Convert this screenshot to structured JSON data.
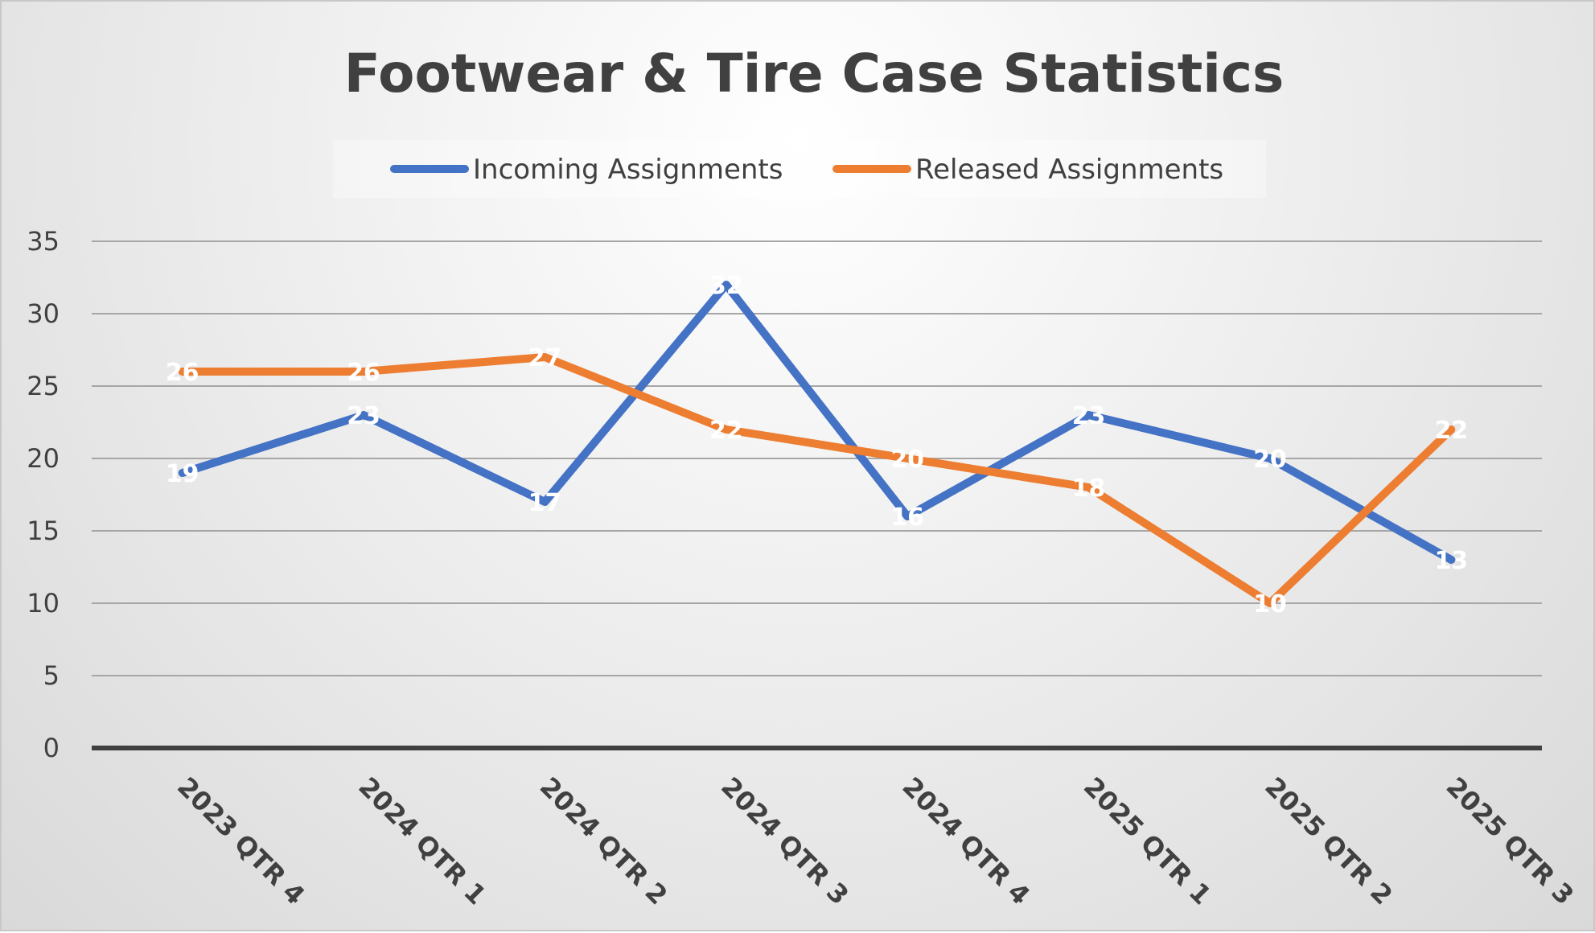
{
  "chart_data": {
    "type": "line",
    "title": "Footwear & Tire Case Statistics",
    "categories": [
      "2023 QTR 4",
      "2024 QTR 1",
      "2024 QTR 2",
      "2024 QTR 3",
      "2024 QTR 4",
      "2025 QTR 1",
      "2025 QTR 2",
      "2025 QTR 3"
    ],
    "series": [
      {
        "name": "Incoming Assignments",
        "color": "#4472C4",
        "values": [
          19,
          23,
          17,
          32,
          16,
          23,
          20,
          13
        ]
      },
      {
        "name": "Released Assignments",
        "color": "#ED7D31",
        "values": [
          26,
          26,
          27,
          22,
          20,
          18,
          10,
          22
        ]
      }
    ],
    "yticks": [
      0,
      5,
      10,
      15,
      20,
      25,
      30,
      35
    ],
    "ylim": [
      0,
      35
    ],
    "grid": true,
    "legend_position": "top",
    "data_labels": true
  }
}
